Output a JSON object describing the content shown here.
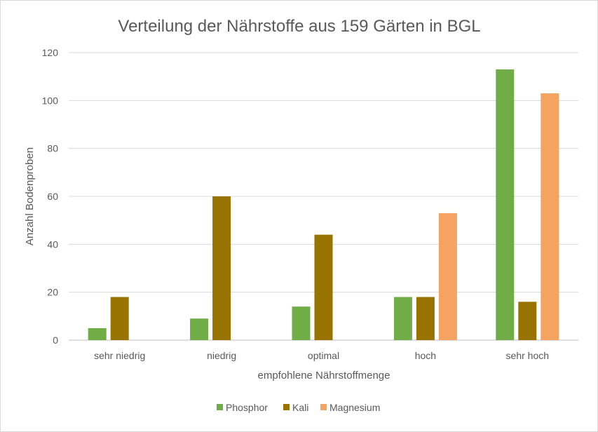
{
  "chart_data": {
    "type": "bar",
    "title": "Verteilung der Nährstoffe aus 159 Gärten in BGL",
    "xlabel": "empfohlene Nährstoffmenge",
    "ylabel": "Anzahl Bodenproben",
    "categories": [
      "sehr niedrig",
      "niedrig",
      "optimal",
      "hoch",
      "sehr hoch"
    ],
    "ylim": [
      0,
      120
    ],
    "yticks": [
      0,
      20,
      40,
      60,
      80,
      100,
      120
    ],
    "grid": true,
    "legend_position": "bottom",
    "series": [
      {
        "name": "Phosphor",
        "color": "#70ad47",
        "values": [
          5,
          9,
          14,
          18,
          113
        ]
      },
      {
        "name": "Kali",
        "color": "#997300",
        "values": [
          18,
          60,
          44,
          18,
          16
        ]
      },
      {
        "name": "Magnesium",
        "color": "#f4a460",
        "values": [
          0,
          0,
          0,
          53,
          103
        ]
      }
    ]
  }
}
